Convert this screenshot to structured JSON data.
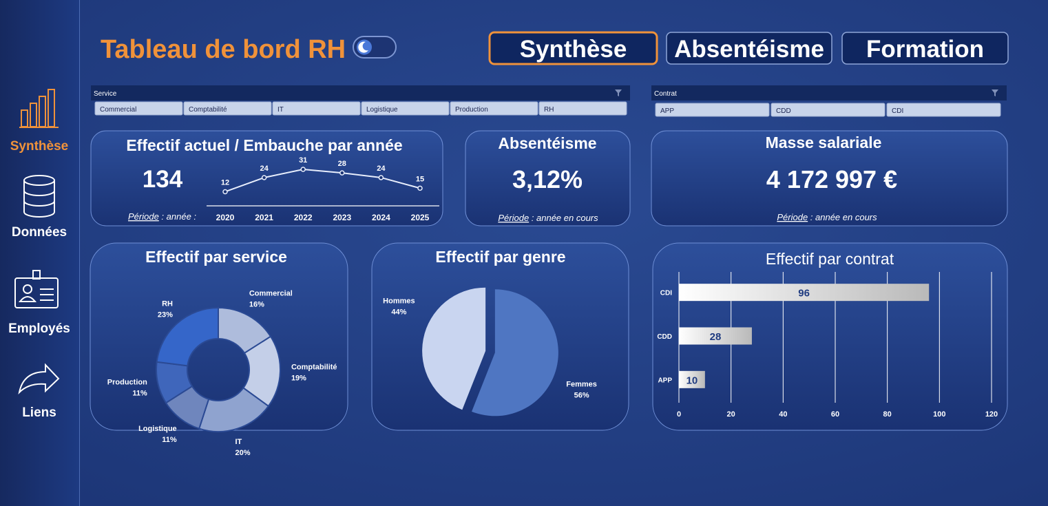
{
  "sidebar": {
    "active": 0,
    "items": [
      "Synthèse",
      "Données",
      "Employés",
      "Liens"
    ]
  },
  "header": {
    "title": "Tableau de bord RH",
    "active_tab": 0,
    "tabs": [
      "Synthèse",
      "Absentéisme",
      "Formation"
    ]
  },
  "slicers": [
    {
      "title": "Service",
      "items": [
        "Commercial",
        "Comptabilité",
        "IT",
        "Logistique",
        "Production",
        "RH"
      ]
    },
    {
      "title": "Contrat",
      "items": [
        "APP",
        "CDD",
        "CDI"
      ]
    }
  ],
  "cards": {
    "effectif": {
      "title": "Effectif actuel / Embauche par année",
      "value": 134,
      "period": {
        "label": "Période",
        "text": " : année :"
      },
      "chart": {
        "type": "line",
        "x": [
          "2020",
          "2021",
          "2022",
          "2023",
          "2024",
          "2025"
        ],
        "values": [
          12,
          24,
          31,
          28,
          24,
          15
        ],
        "color": "#e8eefc"
      }
    },
    "absenteisme": {
      "title": "Absentéisme",
      "value": "3,12%",
      "period": {
        "label": "Période",
        "text": " : année en cours"
      }
    },
    "masse": {
      "title": "Masse salariale",
      "value": "4 172 997 €",
      "period": {
        "label": "Période",
        "text": " : année en cours"
      }
    }
  },
  "charts": [
    {
      "type": "donut",
      "title": "Effectif par service",
      "categories": [
        "Commercial",
        "Comptabilité",
        "IT",
        "Logistique",
        "Production",
        "RH"
      ],
      "values": [
        16,
        19,
        20,
        11,
        11,
        23
      ],
      "value_labels": [
        "16%",
        "19%",
        "20%",
        "11%",
        "11%",
        "23%"
      ],
      "colors": [
        "#aebcdc",
        "#c4cfe8",
        "#8fa3cf",
        "#6f86bd",
        "#3f66bb",
        "#3566c9"
      ]
    },
    {
      "type": "pie",
      "title": "Effectif par genre",
      "categories": [
        "Hommes",
        "Femmes"
      ],
      "values": [
        44,
        56
      ],
      "value_labels": [
        "44%",
        "56%"
      ],
      "colors": [
        "#c9d5f0",
        "#4f76c2"
      ]
    },
    {
      "type": "hbar",
      "title": "Effectif par contrat",
      "categories": [
        "CDI",
        "CDD",
        "APP"
      ],
      "values": [
        96,
        28,
        10
      ],
      "color": "#e6e6e6",
      "xlim": [
        0,
        120
      ],
      "xticks": [
        0,
        20,
        40,
        60,
        80,
        100,
        120
      ],
      "grid": true
    }
  ]
}
